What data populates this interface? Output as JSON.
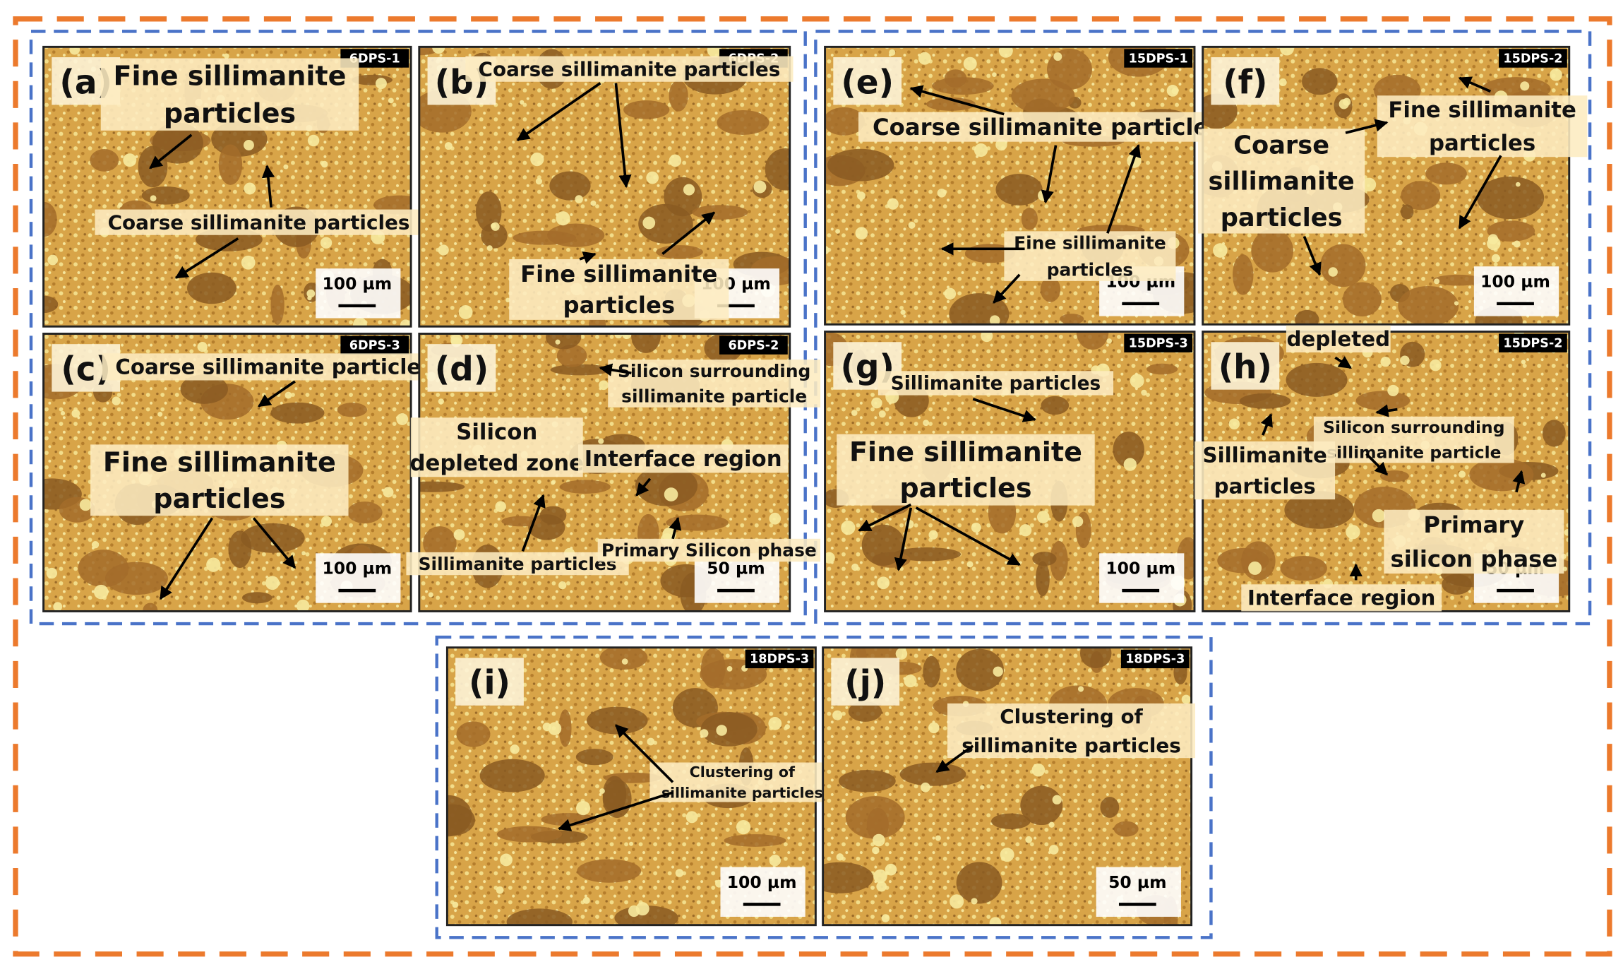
{
  "panels": [
    {
      "label": "(a)",
      "tag": "6DPS-1",
      "scale_bar": "100 µm",
      "annotations": [
        {
          "lines": [
            "Fine sillimanite",
            "particles"
          ]
        },
        {
          "lines": [
            "Coarse sillimanite particles"
          ]
        }
      ]
    },
    {
      "label": "(b)",
      "tag": "6DPS-2",
      "scale_bar": "100 µm",
      "annotations": [
        {
          "lines": [
            "Coarse sillimanite particles"
          ]
        },
        {
          "lines": [
            "Fine sillimanite",
            "particles"
          ]
        }
      ]
    },
    {
      "label": "(c)",
      "tag": "6DPS-3",
      "scale_bar": "100 µm",
      "annotations": [
        {
          "lines": [
            "Coarse sillimanite particles"
          ]
        },
        {
          "lines": [
            "Fine sillimanite",
            "particles"
          ]
        }
      ]
    },
    {
      "label": "(d)",
      "tag": "6DPS-2",
      "scale_bar": "50 µm",
      "annotations": [
        {
          "lines": [
            "Silicon surrounding",
            "sillimanite particle"
          ]
        },
        {
          "lines": [
            "Silicon",
            "depleted zone"
          ]
        },
        {
          "lines": [
            "Interface region"
          ]
        },
        {
          "lines": [
            "Sillimanite particles"
          ]
        },
        {
          "lines": [
            "Primary Silicon phase"
          ]
        }
      ]
    },
    {
      "label": "(e)",
      "tag": "15DPS-1",
      "scale_bar": "100 µm",
      "annotations": [
        {
          "lines": [
            "Coarse sillimanite particles"
          ]
        },
        {
          "lines": [
            "Fine sillimanite",
            "particles"
          ]
        }
      ]
    },
    {
      "label": "(f)",
      "tag": "15DPS-2",
      "scale_bar": "100 µm",
      "annotations": [
        {
          "lines": [
            "Coarse",
            "sillimanite",
            "particles"
          ]
        },
        {
          "lines": [
            "Fine sillimanite",
            "particles"
          ]
        }
      ]
    },
    {
      "label": "(g)",
      "tag": "15DPS-3",
      "scale_bar": "100 µm",
      "annotations": [
        {
          "lines": [
            "Sillimanite particles"
          ]
        },
        {
          "lines": [
            "Fine sillimanite",
            "particles"
          ]
        }
      ]
    },
    {
      "label": "(h)",
      "tag": "15DPS-2",
      "scale_bar": "50 µm",
      "annotations": [
        {
          "lines": [
            "depleted"
          ]
        },
        {
          "lines": [
            "Silicon surrounding",
            "sillimanite particle"
          ]
        },
        {
          "lines": [
            "Sillimanite",
            "particles"
          ]
        },
        {
          "lines": [
            "Primary",
            "silicon phase"
          ]
        },
        {
          "lines": [
            "Interface region"
          ]
        }
      ]
    },
    {
      "label": "(i)",
      "tag": "18DPS-3",
      "scale_bar": "100 µm",
      "annotations": [
        {
          "lines": [
            "Clustering of",
            "sillimanite particles"
          ]
        }
      ]
    },
    {
      "label": "(j)",
      "tag": "18DPS-3",
      "scale_bar": "50 µm",
      "annotations": [
        {
          "lines": [
            "Clustering of",
            "sillimanite particles"
          ]
        }
      ]
    }
  ]
}
